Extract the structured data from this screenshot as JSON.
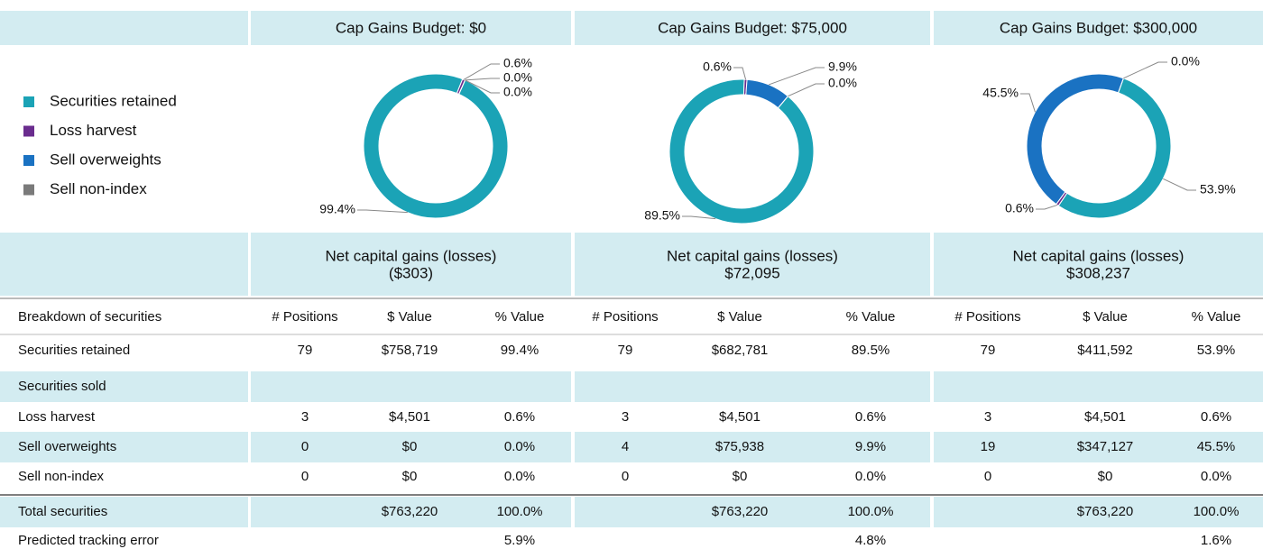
{
  "legend_order": [
    0,
    1,
    2,
    3
  ],
  "chart_data": [
    {
      "type": "pie",
      "title": "Cap Gains Budget: $0",
      "categories": [
        "Securities retained",
        "Loss harvest",
        "Sell overweights",
        "Sell non-index"
      ],
      "colors": [
        "#1ba3b6",
        "#6a2c8e",
        "#1a72c2",
        "#7a7a7a"
      ],
      "values": [
        99.4,
        0.6,
        0.0,
        0.0
      ],
      "value_labels": [
        "99.4%",
        "0.6%",
        "0.0%",
        "0.0%"
      ]
    },
    {
      "type": "pie",
      "title": "Cap Gains Budget: $75,000",
      "categories": [
        "Securities retained",
        "Loss harvest",
        "Sell overweights",
        "Sell non-index"
      ],
      "colors": [
        "#1ba3b6",
        "#6a2c8e",
        "#1a72c2",
        "#7a7a7a"
      ],
      "values": [
        89.5,
        0.6,
        9.9,
        0.0
      ],
      "value_labels": [
        "89.5%",
        "0.6%",
        "9.9%",
        "0.0%"
      ]
    },
    {
      "type": "pie",
      "title": "Cap Gains Budget: $300,000",
      "categories": [
        "Securities retained",
        "Loss harvest",
        "Sell overweights",
        "Sell non-index"
      ],
      "colors": [
        "#1ba3b6",
        "#6a2c8e",
        "#1a72c2",
        "#7a7a7a"
      ],
      "values": [
        53.9,
        0.6,
        45.5,
        0.0
      ],
      "value_labels": [
        "53.9%",
        "0.6%",
        "45.5%",
        "0.0%"
      ]
    }
  ],
  "table": {
    "group_headers": [
      {
        "label": "Net capital gains (losses)",
        "amount": "($303)"
      },
      {
        "label": "Net capital gains (losses)",
        "amount": "$72,095"
      },
      {
        "label": "Net capital gains (losses)",
        "amount": "$308,237"
      }
    ],
    "column_headers": [
      "Breakdown of securities",
      "# Positions",
      "$ Value",
      "% Value",
      "# Positions",
      "$ Value",
      "% Value",
      "# Positions",
      "$ Value",
      "% Value"
    ],
    "rows": [
      [
        "Securities retained",
        "79",
        "$758,719",
        "99.4%",
        "79",
        "$682,781",
        "89.5%",
        "79",
        "$411,592",
        "53.9%"
      ],
      [
        "Securities sold"
      ],
      [
        "Loss harvest",
        "3",
        "$4,501",
        "0.6%",
        "3",
        "$4,501",
        "0.6%",
        "3",
        "$4,501",
        "0.6%"
      ],
      [
        "Sell overweights",
        "0",
        "$0",
        "0.0%",
        "4",
        "$75,938",
        "9.9%",
        "19",
        "$347,127",
        "45.5%"
      ],
      [
        "Sell non-index",
        "0",
        "$0",
        "0.0%",
        "0",
        "$0",
        "0.0%",
        "0",
        "$0",
        "0.0%"
      ],
      [
        "Total securities",
        null,
        "$763,220",
        "100.0%",
        null,
        "$763,220",
        "100.0%",
        null,
        "$763,220",
        "100.0%"
      ],
      [
        "Predicted tracking error",
        null,
        null,
        "5.9%",
        null,
        null,
        "4.8%",
        null,
        null,
        "1.6%"
      ]
    ]
  }
}
